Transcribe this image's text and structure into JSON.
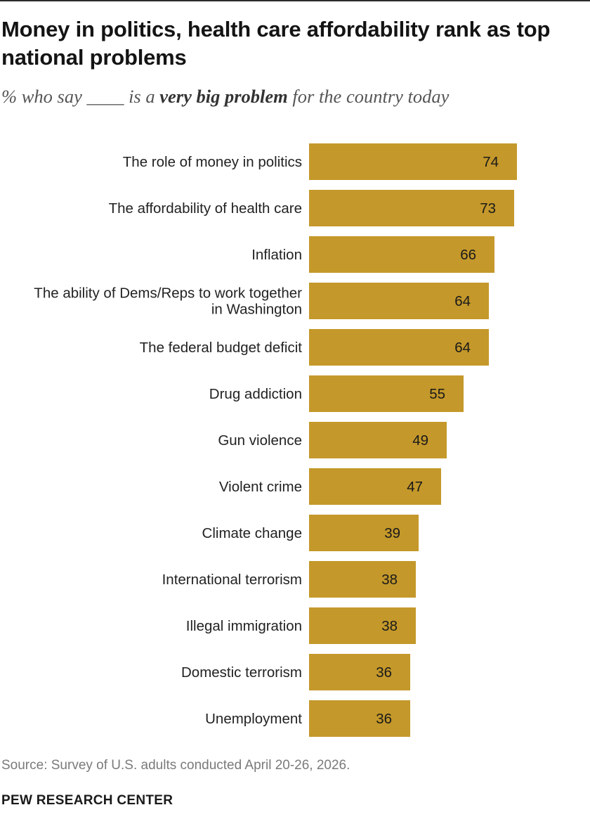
{
  "title": "Money in politics, health care affordability rank as top national problems",
  "subtitle": {
    "prefix": "% who say ____ is a ",
    "emphasis": "very big problem",
    "suffix": " for the country today"
  },
  "source": "Source: Survey of U.S. adults conducted April 20-26, 2026.",
  "brand": "PEW RESEARCH CENTER",
  "colors": {
    "bar": "#c4982a"
  },
  "chart_data": {
    "type": "bar",
    "orientation": "horizontal",
    "categories": [
      [
        "The role of money in politics"
      ],
      [
        "The affordability of health care"
      ],
      [
        "Inflation"
      ],
      [
        "The ability of Dems/Reps to work together",
        "in Washington"
      ],
      [
        "The federal budget deficit"
      ],
      [
        "Drug addiction"
      ],
      [
        "Gun violence"
      ],
      [
        "Violent crime"
      ],
      [
        "Climate change"
      ],
      [
        "International terrorism"
      ],
      [
        "Illegal immigration"
      ],
      [
        "Domestic terrorism"
      ],
      [
        "Unemployment"
      ]
    ],
    "values": [
      74,
      73,
      66,
      64,
      64,
      55,
      49,
      47,
      39,
      38,
      38,
      36,
      36
    ],
    "xlim": [
      0,
      100
    ],
    "data_labels": true,
    "grid": false,
    "title": "",
    "xlabel": "",
    "ylabel": ""
  }
}
